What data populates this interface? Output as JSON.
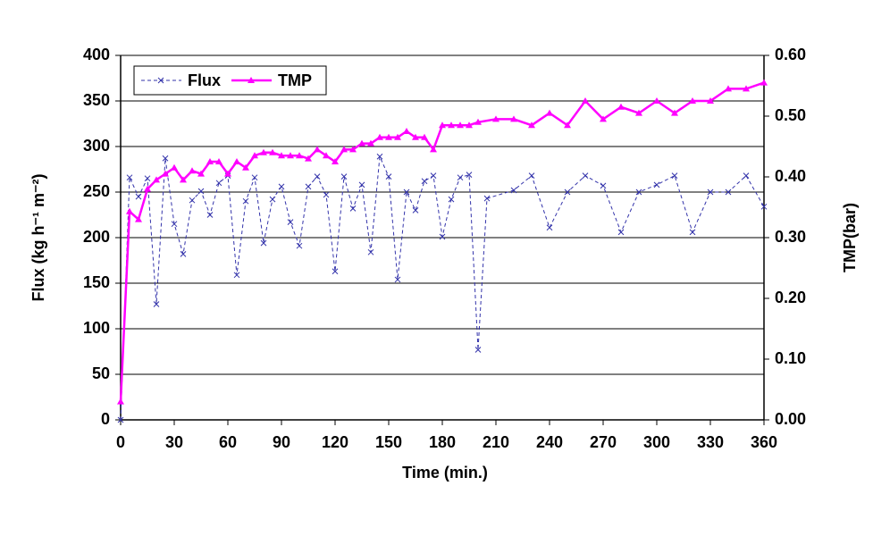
{
  "chart_data": {
    "type": "line",
    "xlabel": "Time (min.)",
    "ylabel": "Flux (kg h⁻¹ m⁻²)",
    "y2label": "TMP(bar)",
    "xlim": [
      0,
      360
    ],
    "xticks": [
      0,
      30,
      60,
      90,
      120,
      150,
      180,
      210,
      240,
      270,
      300,
      330,
      360
    ],
    "ylim": [
      0,
      400
    ],
    "yticks": [
      0,
      50,
      100,
      150,
      200,
      250,
      300,
      350,
      400
    ],
    "y2lim": [
      0,
      0.6
    ],
    "y2ticks": [
      {
        "value": 0,
        "label": "0.00"
      },
      {
        "value": 0.1,
        "label": "0.10"
      },
      {
        "value": 0.2,
        "label": "0.20"
      },
      {
        "value": 0.3,
        "label": "0.30"
      },
      {
        "value": 0.4,
        "label": "0.40"
      },
      {
        "value": 0.5,
        "label": "0.50"
      },
      {
        "value": 0.6,
        "label": "0.60"
      }
    ],
    "grid": true,
    "legend": "upper left",
    "series": [
      {
        "name": "Flux",
        "color": "#3333aa",
        "marker": "x",
        "dashed": true,
        "x": [
          0,
          5,
          10,
          15,
          20,
          25,
          30,
          35,
          40,
          45,
          50,
          55,
          60,
          65,
          70,
          75,
          80,
          85,
          90,
          95,
          100,
          105,
          110,
          115,
          120,
          125,
          130,
          135,
          140,
          145,
          150,
          155,
          160,
          165,
          170,
          175,
          180,
          185,
          190,
          195,
          200,
          205,
          220,
          230,
          240,
          250,
          260,
          270,
          280,
          290,
          300,
          310,
          320,
          330,
          340,
          350,
          360
        ],
        "values": [
          0,
          266,
          245,
          265,
          127,
          287,
          215,
          182,
          241,
          251,
          225,
          260,
          268,
          159,
          240,
          266,
          194,
          242,
          256,
          217,
          191,
          256,
          267,
          247,
          163,
          267,
          232,
          258,
          184,
          289,
          267,
          154,
          250,
          230,
          262,
          268,
          201,
          242,
          266,
          269,
          77,
          243,
          252,
          268,
          211,
          250,
          268,
          257,
          206,
          250,
          258,
          268,
          206,
          250,
          250,
          268,
          234
        ]
      },
      {
        "name": "TMP",
        "color": "#ff00ff",
        "marker": "triangle",
        "axis": "y2",
        "x": [
          0,
          5,
          10,
          15,
          20,
          25,
          30,
          35,
          40,
          45,
          50,
          55,
          60,
          65,
          70,
          75,
          80,
          85,
          90,
          95,
          100,
          105,
          110,
          115,
          120,
          125,
          130,
          135,
          140,
          145,
          150,
          155,
          160,
          165,
          170,
          175,
          180,
          185,
          190,
          195,
          200,
          210,
          220,
          230,
          240,
          250,
          260,
          270,
          280,
          290,
          300,
          310,
          320,
          330,
          340,
          350,
          360
        ],
        "values": [
          0.03,
          0.343,
          0.33,
          0.38,
          0.395,
          0.405,
          0.415,
          0.395,
          0.41,
          0.405,
          0.425,
          0.425,
          0.405,
          0.425,
          0.415,
          0.435,
          0.44,
          0.44,
          0.435,
          0.435,
          0.435,
          0.43,
          0.445,
          0.435,
          0.425,
          0.445,
          0.445,
          0.455,
          0.455,
          0.465,
          0.465,
          0.465,
          0.475,
          0.465,
          0.465,
          0.445,
          0.485,
          0.485,
          0.485,
          0.485,
          0.49,
          0.495,
          0.495,
          0.485,
          0.505,
          0.485,
          0.525,
          0.495,
          0.515,
          0.505,
          0.525,
          0.505,
          0.525,
          0.525,
          0.545,
          0.545,
          0.555
        ]
      }
    ]
  }
}
